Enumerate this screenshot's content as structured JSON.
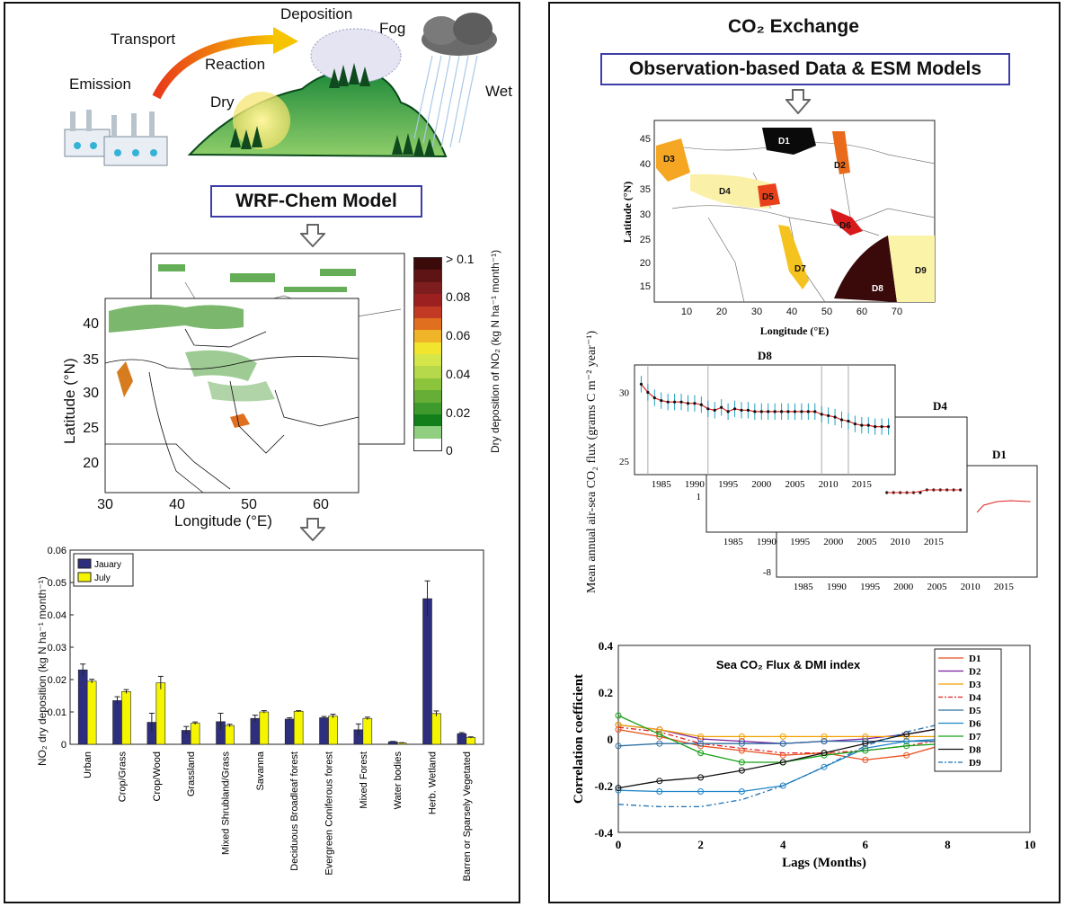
{
  "left": {
    "process_labels": {
      "emission": "Emission",
      "transport": "Transport",
      "reaction": "Reaction",
      "deposition": "Deposition",
      "fog": "Fog",
      "dry": "Dry",
      "wet": "Wet"
    },
    "model_title": "WRF-Chem Model",
    "map": {
      "xlabel": "Longitude (°E)",
      "ylabel": "Latitude (°N)",
      "xticks": [
        "30",
        "40",
        "50",
        "60"
      ],
      "yticks": [
        "40",
        "35",
        "30",
        "25",
        "20"
      ],
      "colorbar_label": "Dry deposition of NO₂ (kg N ha⁻¹ month⁻¹)",
      "colorbar_ticks": [
        "> 0.1",
        "0.08",
        "0.06",
        "0.04",
        "0.02",
        "0"
      ],
      "colorbar_colors": [
        "#3b0a0a",
        "#5e1414",
        "#7e1d1d",
        "#9c2020",
        "#c33a24",
        "#e0701f",
        "#f0b428",
        "#f2e52e",
        "#d5e64a",
        "#b5d94a",
        "#8cc43c",
        "#66ae36",
        "#3f9a2e",
        "#127f1a",
        "#8fcf7f",
        "#ffffff"
      ]
    }
  },
  "chart_data": [
    {
      "type": "bar",
      "title": "",
      "ylabel": "NO₂ dry deposition (kg N ha⁻¹ month⁻¹)",
      "xlabel": "",
      "ylim": [
        0,
        0.06
      ],
      "yticks": [
        "0",
        "0.01",
        "0.02",
        "0.03",
        "0.04",
        "0.05",
        "0.06"
      ],
      "categories": [
        "Urban",
        "Crop/Grass",
        "Crop/Wood",
        "Grassland",
        "Mixed Shrubland/Grass",
        "Savanna",
        "Deciduous Broadleaf forest",
        "Evergreen Coniferous forest",
        "Mixed Forest",
        "Water bodies",
        "Herb. Wetland",
        "Barren or Sparsely Vegetated"
      ],
      "series": [
        {
          "name": "Jauary",
          "color": "#2e2e7e",
          "values": [
            0.023,
            0.0135,
            0.0068,
            0.0043,
            0.007,
            0.008,
            0.0078,
            0.0082,
            0.0045,
            0.0008,
            0.045,
            0.0033
          ],
          "errors": [
            0.0018,
            0.0012,
            0.0028,
            0.0012,
            0.0026,
            0.001,
            0.0004,
            0.0004,
            0.0018,
            0.0001,
            0.0055,
            0.0003
          ]
        },
        {
          "name": "July",
          "color": "#f5f500",
          "values": [
            0.0195,
            0.0163,
            0.019,
            0.0065,
            0.0058,
            0.01,
            0.0102,
            0.0087,
            0.008,
            0.0004,
            0.0095,
            0.0021
          ],
          "errors": [
            0.0006,
            0.0006,
            0.002,
            0.0004,
            0.0004,
            0.0004,
            0.0002,
            0.0006,
            0.0004,
            0.0001,
            0.0008,
            0.0002
          ]
        }
      ],
      "legend": "top-left"
    },
    {
      "type": "line",
      "title": "",
      "ylabel": "Mean annual air-sea CO₂ flux (grams C m⁻² year⁻¹)",
      "panels": [
        {
          "label": "D8",
          "x": [
            1982,
            1983,
            1984,
            1985,
            1986,
            1987,
            1988,
            1989,
            1990,
            1991,
            1992,
            1993,
            1994,
            1995,
            1996,
            1997,
            1998,
            1999,
            2000,
            2001,
            2002,
            2003,
            2004,
            2005,
            2006,
            2007,
            2008,
            2009,
            2010,
            2011,
            2012,
            2013,
            2014,
            2015,
            2016,
            2017,
            2018,
            2019
          ],
          "values": [
            30.6,
            30.0,
            29.6,
            29.4,
            29.3,
            29.3,
            29.3,
            29.2,
            29.2,
            29.1,
            28.8,
            28.7,
            28.9,
            28.6,
            28.8,
            28.7,
            28.7,
            28.6,
            28.6,
            28.6,
            28.6,
            28.6,
            28.6,
            28.6,
            28.6,
            28.6,
            28.6,
            28.4,
            28.3,
            28.2,
            28.0,
            27.9,
            27.7,
            27.6,
            27.6,
            27.5,
            27.5,
            27.5
          ],
          "yticks": [
            "25",
            "30"
          ],
          "xticks": [
            "1985",
            "1990",
            "1995",
            "2000",
            "2005",
            "2010",
            "2015"
          ]
        },
        {
          "label": "D4",
          "yticks": [
            "1"
          ],
          "xticks": [
            "1985",
            "1990",
            "1995",
            "2000",
            "2005",
            "2010",
            "2015"
          ]
        },
        {
          "label": "D1",
          "yticks": [
            "-8"
          ],
          "xticks": [
            "1985",
            "1990",
            "1995",
            "2000",
            "2005",
            "2010",
            "2015"
          ]
        }
      ]
    },
    {
      "type": "line",
      "title": "Sea CO₂ Flux & DMI index",
      "xlabel": "Lags (Months)",
      "ylabel": "Correlation coefficient",
      "xlim": [
        0,
        10
      ],
      "ylim": [
        -0.4,
        0.4
      ],
      "xticks": [
        "0",
        "2",
        "4",
        "6",
        "8",
        "10"
      ],
      "yticks": [
        "0.4",
        "0.2",
        "0",
        "-0.2",
        "-0.4"
      ],
      "legend": "top-right",
      "x": [
        0,
        1,
        2,
        3,
        4,
        5,
        6,
        7,
        8,
        8.5
      ],
      "series": [
        {
          "name": "D1",
          "color": "#e8501e",
          "marker": "circle",
          "values": [
            0.04,
            0.01,
            -0.03,
            -0.05,
            -0.07,
            -0.06,
            -0.09,
            -0.07,
            -0.02,
            -0.01
          ]
        },
        {
          "name": "D2",
          "color": "#7a1fa0",
          "marker": "plus",
          "values": [
            0.06,
            0.04,
            0.0,
            -0.01,
            -0.02,
            -0.01,
            0.0,
            0.02,
            0.05,
            0.04
          ]
        },
        {
          "name": "D3",
          "color": "#f2a000",
          "marker": "star",
          "values": [
            0.06,
            0.04,
            0.01,
            0.01,
            0.01,
            0.01,
            0.01,
            0.01,
            0.01,
            0.02
          ]
        },
        {
          "name": "D4",
          "color": "#e02020",
          "marker": "dash-dot",
          "values": [
            0.05,
            0.03,
            -0.02,
            -0.04,
            -0.06,
            -0.06,
            -0.05,
            -0.03,
            0.0,
            0.01
          ]
        },
        {
          "name": "D5",
          "color": "#2f6fa0",
          "marker": "x",
          "values": [
            -0.03,
            -0.02,
            -0.02,
            -0.02,
            -0.02,
            -0.01,
            -0.01,
            -0.01,
            -0.01,
            -0.02
          ]
        },
        {
          "name": "D6",
          "color": "#1f86c8",
          "marker": "square",
          "values": [
            -0.22,
            -0.225,
            -0.225,
            -0.225,
            -0.2,
            -0.12,
            -0.04,
            -0.01,
            0.0,
            0.0
          ]
        },
        {
          "name": "D7",
          "color": "#18a018",
          "marker": "diamond",
          "values": [
            0.1,
            0.02,
            -0.06,
            -0.1,
            -0.1,
            -0.07,
            -0.05,
            -0.03,
            -0.02,
            -0.02
          ]
        },
        {
          "name": "D8",
          "color": "#111111",
          "marker": "star5",
          "values": [
            -0.21,
            -0.18,
            -0.165,
            -0.135,
            -0.1,
            -0.06,
            -0.02,
            0.02,
            0.05,
            0.04
          ]
        },
        {
          "name": "D9",
          "color": "#1f70b0",
          "marker": "dashdot",
          "values": [
            -0.28,
            -0.29,
            -0.29,
            -0.26,
            -0.2,
            -0.12,
            -0.03,
            0.03,
            0.07,
            0.08
          ]
        }
      ]
    }
  ],
  "right": {
    "title": "CO₂ Exchange",
    "subtitle": "Observation-based Data & ESM Models",
    "map": {
      "xlabel": "Longitude (°E)",
      "ylabel": "Latitude (°N)",
      "xticks": [
        "10",
        "20",
        "30",
        "40",
        "50",
        "60",
        "70"
      ],
      "yticks": [
        "45",
        "40",
        "35",
        "30",
        "25",
        "20",
        "15"
      ],
      "regions": [
        "D1",
        "D2",
        "D3",
        "D4",
        "D5",
        "D6",
        "D7",
        "D8",
        "D9"
      ]
    }
  }
}
